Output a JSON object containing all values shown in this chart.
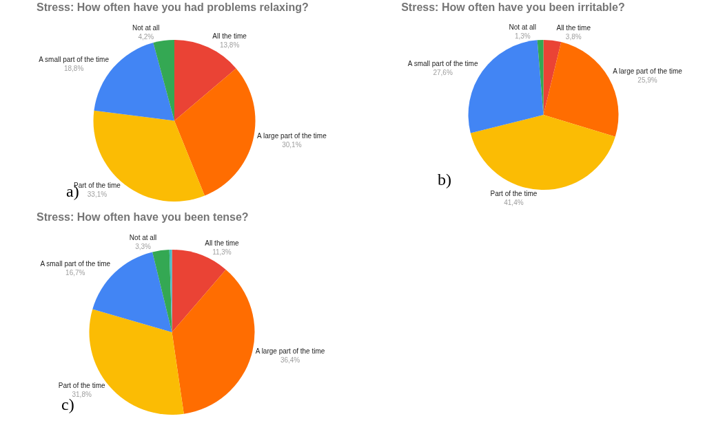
{
  "chart_data": [
    {
      "type": "pie",
      "title": "Stress: How often have you had problems relaxing?",
      "categories": [
        "All the time",
        "A large part of the time",
        "Part of the time",
        "A small part of the time",
        "Not at all"
      ],
      "values": [
        13.8,
        30.1,
        33.1,
        18.8,
        4.2
      ],
      "value_labels": [
        "13,8%",
        "30,1%",
        "33,1%",
        "18,8%",
        "4,2%"
      ],
      "colors": [
        "#ea4335",
        "#ff6d01",
        "#fbbc04",
        "#4285f4",
        "#34a853"
      ],
      "annotations": [
        "a)"
      ],
      "legend": false
    },
    {
      "type": "pie",
      "title": "Stress: How often have you been irritable?",
      "categories": [
        "All the time",
        "A large part of the time",
        "Part of the time",
        "A small part of the time",
        "Not at all"
      ],
      "values": [
        3.8,
        25.9,
        41.4,
        27.6,
        1.3
      ],
      "value_labels": [
        "3,8%",
        "25,9%",
        "41,4%",
        "27,6%",
        "1,3%"
      ],
      "colors": [
        "#ea4335",
        "#ff6d01",
        "#fbbc04",
        "#4285f4",
        "#34a853"
      ],
      "annotations": [
        "b)"
      ],
      "legend": false
    },
    {
      "type": "pie",
      "title": "Stress: How often have you been tense?",
      "categories": [
        "All the time",
        "A large part of the time",
        "Part of the time",
        "A small part of the time",
        "Not at all",
        null
      ],
      "values": [
        11.3,
        36.4,
        31.8,
        16.7,
        3.3,
        0.5
      ],
      "value_labels": [
        "11,3%",
        "36,4%",
        "31,8%",
        "16,7%",
        "3,3%",
        null
      ],
      "colors": [
        "#ea4335",
        "#ff6d01",
        "#fbbc04",
        "#4285f4",
        "#34a853",
        "#46bdc6"
      ],
      "annotations": [
        "c)"
      ],
      "legend": false
    }
  ]
}
